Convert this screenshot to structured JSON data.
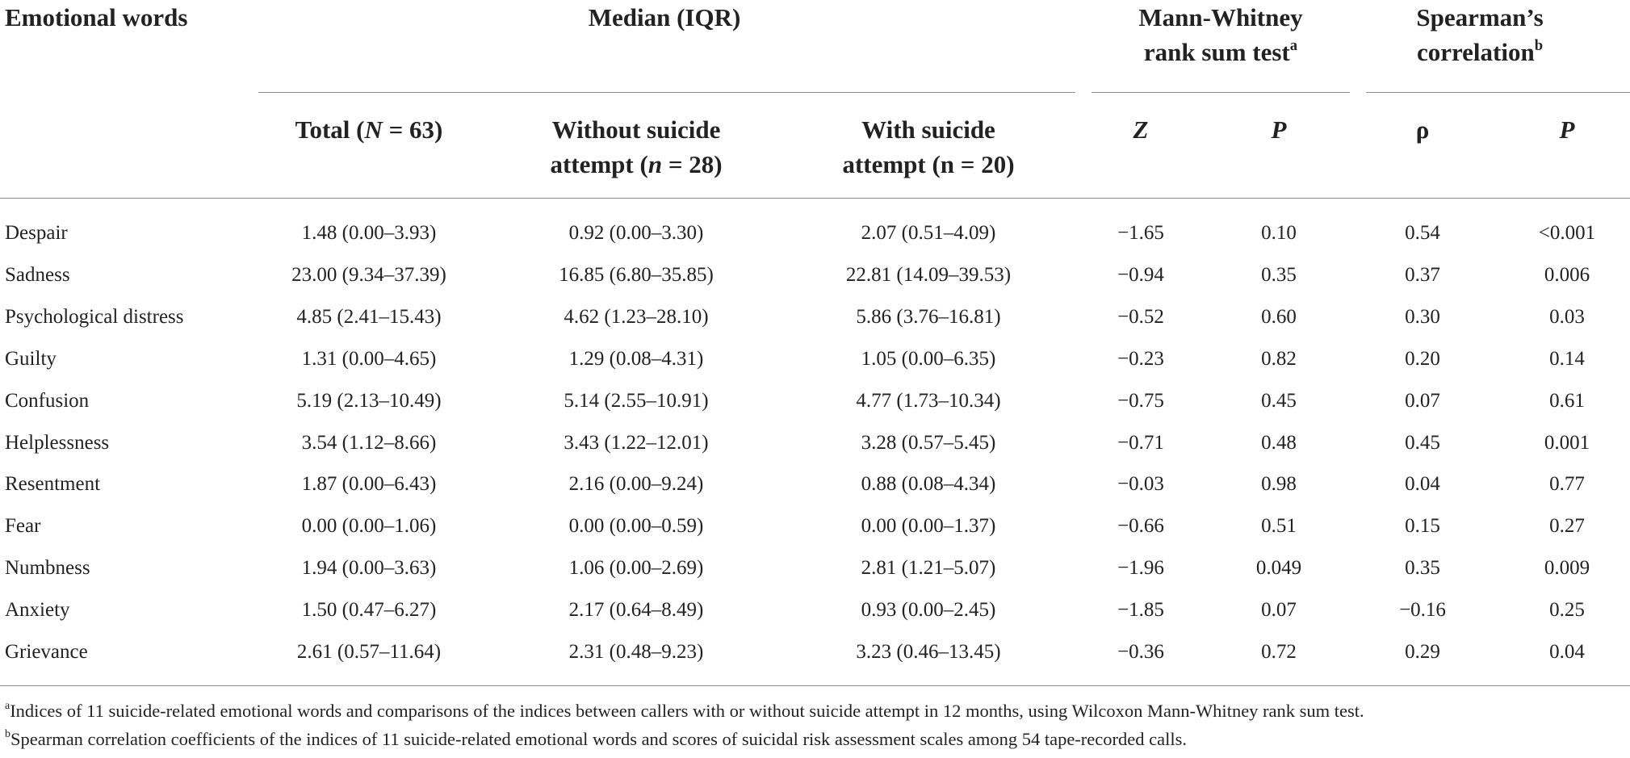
{
  "headers": {
    "col0": "Emotional words",
    "median_group": "Median (IQR)",
    "mw_line1": "Mann-Whitney",
    "mw_line2": "rank sum test",
    "mw_sup": "a",
    "sp_line1": "Spearman’s",
    "sp_line2": "correlation",
    "sp_sup": "b",
    "total_pre": "Total (",
    "total_var": "N",
    "total_post": " = 63)",
    "without_line1": "Without suicide",
    "without_pre": "attempt (",
    "without_var": "n",
    "without_post": " = 28)",
    "with_line1": "With suicide",
    "with_line2": "attempt (n = 20)",
    "z": "Z",
    "p1": "P",
    "rho": "ρ",
    "p2": "P"
  },
  "rows": [
    {
      "word": "Despair",
      "total": "1.48 (0.00–3.93)",
      "without": "0.92 (0.00–3.30)",
      "with": "2.07 (0.51–4.09)",
      "z": "−1.65",
      "p": "0.10",
      "rho": "0.54",
      "sp_p": "<0.001"
    },
    {
      "word": "Sadness",
      "total": "23.00 (9.34–37.39)",
      "without": "16.85 (6.80–35.85)",
      "with": "22.81 (14.09–39.53)",
      "z": "−0.94",
      "p": "0.35",
      "rho": "0.37",
      "sp_p": "0.006"
    },
    {
      "word": "Psychological distress",
      "total": "4.85 (2.41–15.43)",
      "without": "4.62 (1.23–28.10)",
      "with": "5.86 (3.76–16.81)",
      "z": "−0.52",
      "p": "0.60",
      "rho": "0.30",
      "sp_p": "0.03"
    },
    {
      "word": "Guilty",
      "total": "1.31 (0.00–4.65)",
      "without": "1.29 (0.08–4.31)",
      "with": "1.05 (0.00–6.35)",
      "z": "−0.23",
      "p": "0.82",
      "rho": "0.20",
      "sp_p": "0.14"
    },
    {
      "word": "Confusion",
      "total": "5.19 (2.13–10.49)",
      "without": "5.14 (2.55–10.91)",
      "with": "4.77 (1.73–10.34)",
      "z": "−0.75",
      "p": "0.45",
      "rho": "0.07",
      "sp_p": "0.61"
    },
    {
      "word": "Helplessness",
      "total": "3.54 (1.12–8.66)",
      "without": "3.43 (1.22–12.01)",
      "with": "3.28 (0.57–5.45)",
      "z": "−0.71",
      "p": "0.48",
      "rho": "0.45",
      "sp_p": "0.001"
    },
    {
      "word": "Resentment",
      "total": "1.87 (0.00–6.43)",
      "without": "2.16 (0.00–9.24)",
      "with": "0.88 (0.08–4.34)",
      "z": "−0.03",
      "p": "0.98",
      "rho": "0.04",
      "sp_p": "0.77"
    },
    {
      "word": "Fear",
      "total": "0.00 (0.00–1.06)",
      "without": "0.00 (0.00–0.59)",
      "with": "0.00 (0.00–1.37)",
      "z": "−0.66",
      "p": "0.51",
      "rho": "0.15",
      "sp_p": "0.27"
    },
    {
      "word": "Numbness",
      "total": "1.94 (0.00–3.63)",
      "without": "1.06 (0.00–2.69)",
      "with": "2.81 (1.21–5.07)",
      "z": "−1.96",
      "p": "0.049",
      "rho": "0.35",
      "sp_p": "0.009"
    },
    {
      "word": "Anxiety",
      "total": "1.50 (0.47–6.27)",
      "without": "2.17 (0.64–8.49)",
      "with": "0.93 (0.00–2.45)",
      "z": "−1.85",
      "p": "0.07",
      "rho": "−0.16",
      "sp_p": "0.25"
    },
    {
      "word": "Grievance",
      "total": "2.61 (0.57–11.64)",
      "without": "2.31 (0.48–9.23)",
      "with": "3.23 (0.46–13.45)",
      "z": "−0.36",
      "p": "0.72",
      "rho": "0.29",
      "sp_p": "0.04"
    }
  ],
  "footnotes": [
    {
      "mark": "a",
      "text": "Indices of 11 suicide-related emotional words and comparisons of the indices between callers with or without suicide attempt in 12 months, using Wilcoxon Mann-Whitney rank sum test."
    },
    {
      "mark": "b",
      "text": "Spearman correlation coefficients of the indices of 11 suicide-related emotional words and scores of suicidal risk assessment scales among 54 tape-recorded calls."
    }
  ]
}
